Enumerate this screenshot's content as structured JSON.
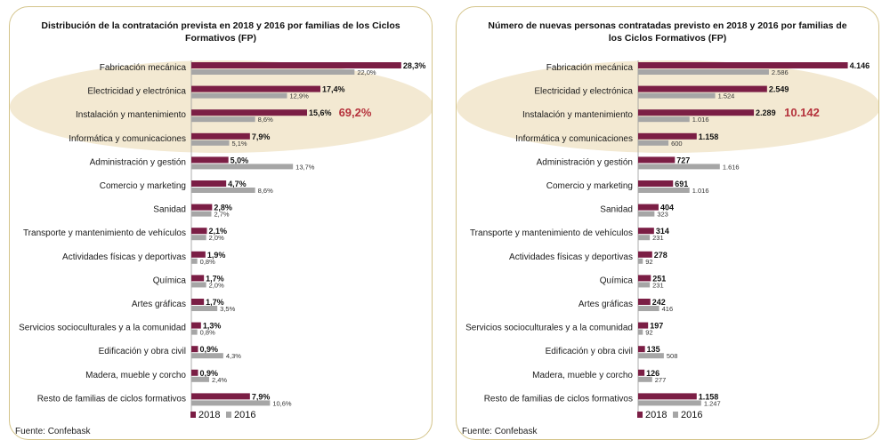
{
  "colors": {
    "c2018": "#7b1e45",
    "c2016": "#a6a6a6",
    "ellipse": "#f3e9d2",
    "highlight": "#b5323c"
  },
  "source_text": "Fuente: Confebask",
  "chart_data": [
    {
      "type": "bar",
      "orientation": "horizontal",
      "title": "Distribución de la contratación prevista en 2018 y 2016 por familias de los Ciclos Formativos (FP)",
      "categories": [
        "Fabricación mecánica",
        "Electricidad y electrónica",
        "Instalación y mantenimiento",
        "Informática y comunicaciones",
        "Administración y gestión",
        "Comercio y marketing",
        "Sanidad",
        "Transporte y mantenimiento de vehículos",
        "Actividades físicas y deportivas",
        "Química",
        "Artes gráficas",
        "Servicios socioculturales y a la comunidad",
        "Edificación y obra civil",
        "Madera, mueble y corcho",
        "Resto de familias de ciclos formativos"
      ],
      "series": [
        {
          "name": "2018",
          "values": [
            28.3,
            17.4,
            15.6,
            7.9,
            5.0,
            4.7,
            2.8,
            2.1,
            1.9,
            1.7,
            1.7,
            1.3,
            0.9,
            0.9,
            7.9
          ],
          "labels": [
            "28,3%",
            "17,4%",
            "15,6%",
            "7,9%",
            "5,0%",
            "4,7%",
            "2,8%",
            "2,1%",
            "1,9%",
            "1,7%",
            "1,7%",
            "1,3%",
            "0,9%",
            "0,9%",
            "7,9%"
          ]
        },
        {
          "name": "2016",
          "values": [
            22.0,
            12.9,
            8.6,
            5.1,
            13.7,
            8.6,
            2.7,
            2.0,
            0.8,
            2.0,
            3.5,
            0.8,
            4.3,
            2.4,
            10.6
          ],
          "labels": [
            "22,0%",
            "12,9%",
            "8,6%",
            "5,1%",
            "13,7%",
            "8,6%",
            "2,7%",
            "2,0%",
            "0,8%",
            "2,0%",
            "3,5%",
            "0,8%",
            "4,3%",
            "2,4%",
            "10,6%"
          ]
        }
      ],
      "xlim": [
        0,
        30
      ],
      "annotation": "69,2%",
      "legend": [
        "2018",
        "2016"
      ]
    },
    {
      "type": "bar",
      "orientation": "horizontal",
      "title": "Número de nuevas personas contratadas previsto en 2018 y 2016 por familias de los Ciclos Formativos (FP)",
      "categories": [
        "Fabricación mecánica",
        "Electricidad y electrónica",
        "Instalación y mantenimiento",
        "Informática y comunicaciones",
        "Administración y gestión",
        "Comercio y marketing",
        "Sanidad",
        "Transporte y mantenimiento de vehículos",
        "Actividades físicas y deportivas",
        "Química",
        "Artes gráficas",
        "Servicios socioculturales y a la comunidad",
        "Edificación y obra civil",
        "Madera, mueble y corcho",
        "Resto de familias de ciclos formativos"
      ],
      "series": [
        {
          "name": "2018",
          "values": [
            4146,
            2549,
            2289,
            1158,
            727,
            691,
            404,
            314,
            278,
            251,
            242,
            197,
            135,
            126,
            1158
          ],
          "labels": [
            "4.146",
            "2.549",
            "2.289",
            "1.158",
            "727",
            "691",
            "404",
            "314",
            "278",
            "251",
            "242",
            "197",
            "135",
            "126",
            "1.158"
          ]
        },
        {
          "name": "2016",
          "values": [
            2586,
            1524,
            1016,
            600,
            1616,
            1016,
            323,
            231,
            92,
            231,
            416,
            92,
            508,
            277,
            1247
          ],
          "labels": [
            "2.586",
            "1.524",
            "1.016",
            "600",
            "1.616",
            "1.016",
            "323",
            "231",
            "92",
            "231",
            "416",
            "92",
            "508",
            "277",
            "1.247"
          ]
        }
      ],
      "xlim": [
        0,
        4400
      ],
      "annotation": "10.142",
      "legend": [
        "2018",
        "2016"
      ]
    }
  ]
}
